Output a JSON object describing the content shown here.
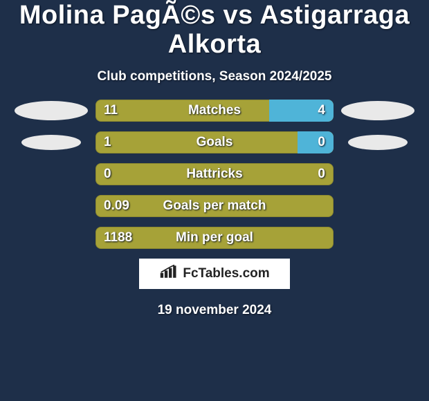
{
  "title": "Molina PagÃ©s vs Astigarraga Alkorta",
  "subtitle": "Club competitions, Season 2024/2025",
  "date": "19 november 2024",
  "badge_text": "FcTables.com",
  "colors": {
    "background": "#1e2f49",
    "bar_left": "#a6a238",
    "bar_right": "#4fb4d8",
    "ellipse": "#e9e9e9",
    "text": "#ffffff",
    "badge_bg": "#ffffff",
    "badge_text": "#222222"
  },
  "rows": [
    {
      "label": "Matches",
      "left_value": "11",
      "right_value": "4",
      "right_fill_pct": 27,
      "show_left_ellipse": true,
      "show_right_ellipse": true
    },
    {
      "label": "Goals",
      "left_value": "1",
      "right_value": "0",
      "right_fill_pct": 15,
      "show_left_ellipse": true,
      "show_right_ellipse": true
    },
    {
      "label": "Hattricks",
      "left_value": "0",
      "right_value": "0",
      "right_fill_pct": 0,
      "show_left_ellipse": false,
      "show_right_ellipse": false
    },
    {
      "label": "Goals per match",
      "left_value": "0.09",
      "right_value": "",
      "right_fill_pct": 0,
      "show_left_ellipse": false,
      "show_right_ellipse": false
    },
    {
      "label": "Min per goal",
      "left_value": "1188",
      "right_value": "",
      "right_fill_pct": 0,
      "show_left_ellipse": false,
      "show_right_ellipse": false
    }
  ]
}
